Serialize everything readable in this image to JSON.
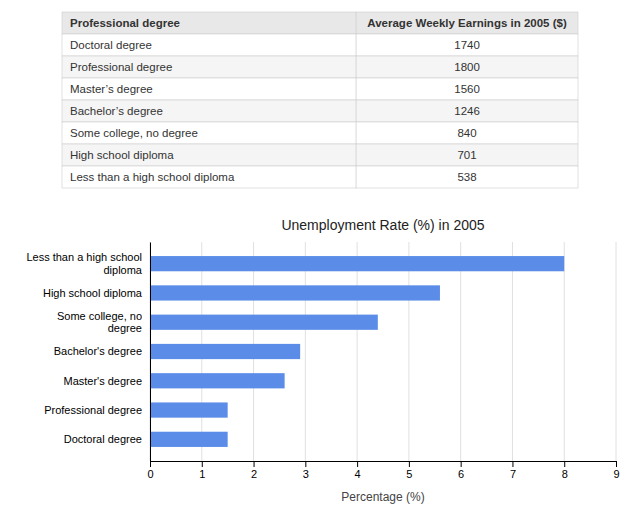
{
  "chart_data": [
    {
      "type": "table",
      "header": [
        "Professional degree",
        "Average Weekly Earnings in 2005 ($)"
      ],
      "categories": [
        "Doctoral degree",
        "Professional degree",
        "Master’s degree",
        "Bachelor’s degree",
        "Some college, no degree",
        "High school diploma",
        "Less than a high school diploma"
      ],
      "values": [
        1740,
        1800,
        1560,
        1246,
        840,
        701,
        538
      ]
    },
    {
      "type": "bar",
      "orientation": "horizontal",
      "title": "Unemployment Rate (%) in 2005",
      "categories": [
        "Doctoral degree",
        "Professional degree",
        "Master's degree",
        "Bachelor's degree",
        "Some college, no\ndegree",
        "High school diploma",
        "Less than a high school\ndiploma"
      ],
      "values": [
        1.5,
        1.5,
        2.6,
        2.9,
        4.4,
        5.6,
        8.0
      ],
      "color": "#5b8de8",
      "xlabel": "Percentage (%)",
      "xlim": [
        0,
        9
      ],
      "xticks": [
        0,
        1,
        2,
        3,
        4,
        5,
        6,
        7,
        8,
        9
      ],
      "grid": true
    }
  ]
}
